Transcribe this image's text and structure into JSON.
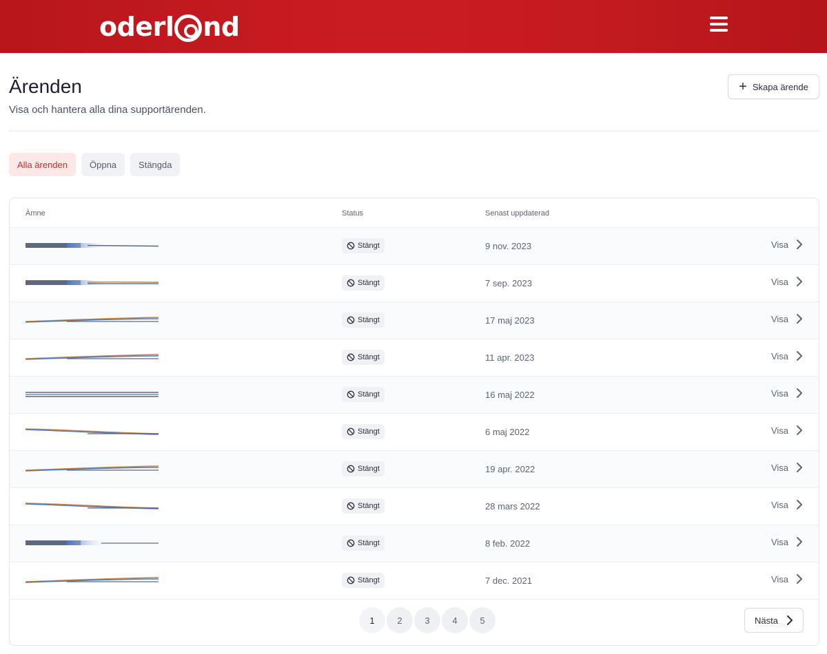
{
  "header": {
    "logo_text_before": "oderl",
    "logo_text_after": "nd",
    "menu_icon": "hamburger-menu-icon",
    "background": "#c21b20"
  },
  "page": {
    "title": "Ärenden",
    "subtitle": "Visa och hantera alla dina supportärenden.",
    "create_button_label": "Skapa ärende"
  },
  "filters": [
    {
      "label": "Alla ärenden",
      "active": true
    },
    {
      "label": "Öppna",
      "active": false
    },
    {
      "label": "Stängda",
      "active": false
    }
  ],
  "table": {
    "columns": {
      "subject": "Ämne",
      "status": "Status",
      "updated": "Senast uppdaterad"
    },
    "rows": [
      {
        "status": "Stängt",
        "updated": "9 nov. 2023",
        "action": "Visa"
      },
      {
        "status": "Stängt",
        "updated": "7 sep. 2023",
        "action": "Visa"
      },
      {
        "status": "Stängt",
        "updated": "17 maj 2023",
        "action": "Visa"
      },
      {
        "status": "Stängt",
        "updated": "11 apr. 2023",
        "action": "Visa"
      },
      {
        "status": "Stängt",
        "updated": "16 maj 2022",
        "action": "Visa"
      },
      {
        "status": "Stängt",
        "updated": "6 maj 2022",
        "action": "Visa"
      },
      {
        "status": "Stängt",
        "updated": "19 apr. 2022",
        "action": "Visa"
      },
      {
        "status": "Stängt",
        "updated": "28 mars 2022",
        "action": "Visa"
      },
      {
        "status": "Stängt",
        "updated": "8 feb. 2022",
        "action": "Visa"
      },
      {
        "status": "Stängt",
        "updated": "7 dec. 2021",
        "action": "Visa"
      }
    ]
  },
  "pagination": {
    "pages": [
      "1",
      "2",
      "3",
      "4",
      "5"
    ],
    "current": "1",
    "next_label": "Nästa"
  },
  "colors": {
    "accent": "#c72a2e",
    "active_filter_bg": "#fde8e8"
  }
}
